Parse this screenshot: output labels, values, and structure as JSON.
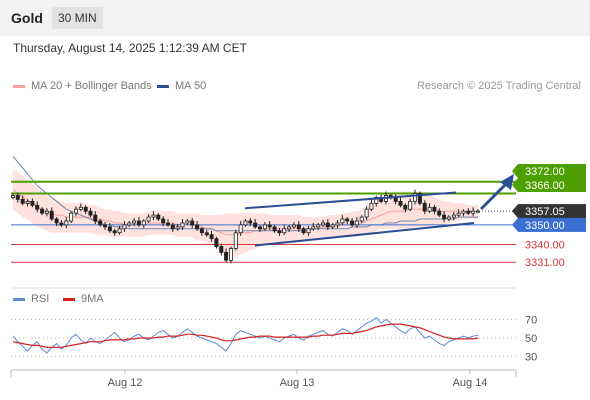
{
  "header": {
    "symbol": "Gold",
    "timeframe": "30 MIN"
  },
  "datetime": "Thursday, August 14, 2025 1:12:39 AM CET",
  "credit": "Research © 2025 Trading Central",
  "colors": {
    "resistance": "#4ea000",
    "last": "#333333",
    "pivot": "#3b6fd1",
    "support": "#d9363e",
    "channel": "#2c4f94",
    "bollinger": "#ffd9d6",
    "ma20": "#f6a19a",
    "ma50": "#6f86ab",
    "rsi": "#5f8ad6",
    "rsi_ma": "#d42020"
  },
  "chart_data": [
    {
      "type": "candlestick",
      "legend": [
        {
          "name": "MA 20 + Bollinger Bands",
          "color": "#f6a19a"
        },
        {
          "name": "MA 50",
          "color": "#2c4f94"
        }
      ],
      "legend_position": "top-left",
      "x_ticks": [
        "Aug 12",
        "Aug 13",
        "Aug 14"
      ],
      "ylim": [
        3326,
        3378
      ],
      "levels": [
        {
          "label": "3372.00",
          "value": 3372.0,
          "kind": "resistance"
        },
        {
          "label": "3366.00",
          "value": 3366.0,
          "kind": "resistance"
        },
        {
          "label": "3357.05",
          "value": 3357.05,
          "kind": "last"
        },
        {
          "label": "3350.00",
          "value": 3350.0,
          "kind": "pivot"
        },
        {
          "label": "3340.00",
          "value": 3340.0,
          "kind": "support"
        },
        {
          "label": "3331.00",
          "value": 3331.0,
          "kind": "support"
        }
      ],
      "channel": {
        "upper": [
          [
            0.0,
            3358.5
          ],
          [
            1.0,
            3366.5
          ]
        ],
        "lower": [
          [
            0.0,
            3339.5
          ],
          [
            1.0,
            3351.0
          ]
        ]
      },
      "forecast_arrow": "up",
      "close": [
        3365,
        3363,
        3361,
        3362,
        3360,
        3358,
        3356,
        3357,
        3353,
        3351,
        3350,
        3352,
        3356,
        3358,
        3359,
        3357,
        3355,
        3352,
        3350,
        3349,
        3347,
        3346,
        3348,
        3350,
        3351,
        3352,
        3350,
        3352,
        3354,
        3355,
        3353,
        3351,
        3350,
        3348,
        3349,
        3351,
        3352,
        3350,
        3348,
        3346,
        3345,
        3343,
        3339,
        3336,
        3332,
        3338,
        3346,
        3350,
        3352,
        3351,
        3349,
        3348,
        3350,
        3349,
        3347,
        3346,
        3348,
        3349,
        3350,
        3348,
        3346,
        3348,
        3349,
        3350,
        3351,
        3349,
        3350,
        3351,
        3353,
        3352,
        3350,
        3352,
        3354,
        3358,
        3361,
        3364,
        3362,
        3365,
        3364,
        3362,
        3360,
        3358,
        3362,
        3366,
        3361,
        3357,
        3359,
        3357,
        3355,
        3353,
        3354,
        3355,
        3356,
        3357,
        3356,
        3357,
        3357.05
      ],
      "ma20": [
        3368,
        3366,
        3364,
        3363,
        3361,
        3359,
        3358,
        3357,
        3356,
        3355,
        3355,
        3354,
        3354,
        3354,
        3354,
        3354,
        3354,
        3353,
        3353,
        3352,
        3352,
        3351,
        3351,
        3350,
        3350,
        3350,
        3350,
        3350,
        3351,
        3351,
        3351,
        3351,
        3351,
        3351,
        3350,
        3350,
        3350,
        3350,
        3349,
        3349,
        3348,
        3348,
        3347,
        3346,
        3345,
        3345,
        3345,
        3346,
        3346,
        3346,
        3347,
        3347,
        3348,
        3348,
        3348,
        3348,
        3348,
        3348,
        3348,
        3348,
        3348,
        3348,
        3348,
        3348,
        3349,
        3349,
        3349,
        3349,
        3350,
        3350,
        3350,
        3350,
        3351,
        3352,
        3353,
        3354,
        3355,
        3356,
        3357,
        3357,
        3357,
        3357,
        3358,
        3358,
        3358,
        3358,
        3358,
        3358,
        3357,
        3357,
        3357,
        3357,
        3357,
        3357,
        3357,
        3357,
        3357
      ],
      "bb_upper": [
        3378,
        3377,
        3375,
        3373,
        3371,
        3369,
        3367,
        3365,
        3364,
        3363,
        3362,
        3361,
        3361,
        3361,
        3361,
        3361,
        3360,
        3360,
        3359,
        3358,
        3358,
        3357,
        3357,
        3356,
        3356,
        3356,
        3356,
        3356,
        3357,
        3357,
        3357,
        3357,
        3357,
        3357,
        3356,
        3356,
        3356,
        3356,
        3356,
        3355,
        3355,
        3355,
        3355,
        3355,
        3356,
        3356,
        3356,
        3356,
        3356,
        3356,
        3356,
        3356,
        3356,
        3355,
        3355,
        3355,
        3355,
        3355,
        3355,
        3355,
        3354,
        3354,
        3354,
        3354,
        3354,
        3355,
        3355,
        3355,
        3356,
        3356,
        3357,
        3357,
        3358,
        3360,
        3362,
        3364,
        3365,
        3366,
        3367,
        3367,
        3367,
        3367,
        3367,
        3367,
        3367,
        3366,
        3365,
        3364,
        3363,
        3362,
        3362,
        3361,
        3361,
        3361,
        3360,
        3360,
        3360
      ],
      "bb_lower": [
        3358,
        3356,
        3354,
        3353,
        3351,
        3349,
        3348,
        3347,
        3346,
        3346,
        3346,
        3346,
        3346,
        3346,
        3346,
        3346,
        3346,
        3345,
        3345,
        3345,
        3344,
        3344,
        3344,
        3344,
        3344,
        3344,
        3344,
        3344,
        3345,
        3345,
        3345,
        3345,
        3345,
        3345,
        3344,
        3344,
        3344,
        3344,
        3342,
        3342,
        3341,
        3340,
        3338,
        3336,
        3334,
        3334,
        3334,
        3335,
        3336,
        3337,
        3338,
        3339,
        3340,
        3341,
        3341,
        3341,
        3341,
        3341,
        3342,
        3342,
        3342,
        3342,
        3342,
        3342,
        3343,
        3343,
        3344,
        3344,
        3344,
        3344,
        3344,
        3344,
        3345,
        3346,
        3346,
        3347,
        3348,
        3348,
        3348,
        3348,
        3348,
        3348,
        3348,
        3349,
        3349,
        3349,
        3349,
        3350,
        3350,
        3350,
        3351,
        3352,
        3352,
        3353,
        3353,
        3353,
        3353
      ],
      "ma50": [
        3385,
        3382,
        3379,
        3376,
        3373,
        3370,
        3368,
        3366,
        3364,
        3362,
        3360,
        3358,
        3357,
        3356,
        3355,
        3354,
        3353,
        3352,
        3351,
        3350,
        3350,
        3349,
        3349,
        3349,
        3348,
        3348,
        3348,
        3348,
        3348,
        3348,
        3348,
        3348,
        3348,
        3348,
        3348,
        3348,
        3348,
        3348,
        3348,
        3348,
        3348,
        3348,
        3347,
        3347,
        3347,
        3347,
        3347,
        3347,
        3347,
        3347,
        3347,
        3347,
        3347,
        3347,
        3347,
        3347,
        3347,
        3347,
        3347,
        3347,
        3347,
        3347,
        3348,
        3348,
        3348,
        3348,
        3348,
        3348,
        3348,
        3348,
        3349,
        3349,
        3349,
        3349,
        3350,
        3350,
        3350,
        3351,
        3351,
        3351,
        3352,
        3352,
        3352,
        3352,
        3353,
        3353,
        3353,
        3353,
        3353,
        3353,
        3353,
        3353,
        3354,
        3354,
        3354,
        3354,
        3354
      ]
    },
    {
      "type": "line",
      "legend": [
        {
          "name": "RSI",
          "color": "#5f8ad6"
        },
        {
          "name": "9MA",
          "color": "#d42020"
        }
      ],
      "y_ticks": [
        30,
        50,
        70
      ],
      "ylim": [
        22,
        78
      ],
      "rsi": [
        52,
        46,
        41,
        36,
        42,
        46,
        38,
        34,
        40,
        44,
        38,
        42,
        50,
        54,
        48,
        44,
        50,
        46,
        44,
        48,
        52,
        56,
        50,
        46,
        48,
        52,
        54,
        50,
        48,
        52,
        56,
        58,
        54,
        50,
        52,
        56,
        60,
        56,
        52,
        50,
        48,
        46,
        44,
        40,
        36,
        44,
        54,
        58,
        56,
        54,
        52,
        50,
        52,
        50,
        48,
        46,
        50,
        52,
        54,
        50,
        48,
        52,
        54,
        56,
        58,
        54,
        52,
        56,
        60,
        58,
        54,
        58,
        62,
        66,
        68,
        72,
        66,
        70,
        66,
        62,
        58,
        55,
        60,
        62,
        56,
        50,
        52,
        48,
        44,
        42,
        46,
        48,
        50,
        52,
        50,
        52,
        53
      ],
      "ma9": [
        46,
        45,
        44,
        43,
        42,
        42,
        41,
        40,
        40,
        40,
        40,
        41,
        42,
        43,
        44,
        45,
        46,
        46,
        46,
        47,
        48,
        48,
        48,
        48,
        49,
        49,
        50,
        50,
        50,
        50,
        51,
        51,
        52,
        52,
        52,
        53,
        54,
        54,
        53,
        53,
        52,
        51,
        50,
        48,
        47,
        47,
        48,
        49,
        50,
        51,
        51,
        52,
        52,
        52,
        51,
        51,
        51,
        51,
        51,
        51,
        51,
        51,
        52,
        52,
        53,
        53,
        53,
        54,
        55,
        55,
        55,
        56,
        57,
        58,
        60,
        62,
        63,
        64,
        65,
        65,
        65,
        64,
        63,
        62,
        61,
        59,
        57,
        55,
        53,
        51,
        50,
        49,
        49,
        49,
        49,
        49,
        50
      ]
    }
  ]
}
